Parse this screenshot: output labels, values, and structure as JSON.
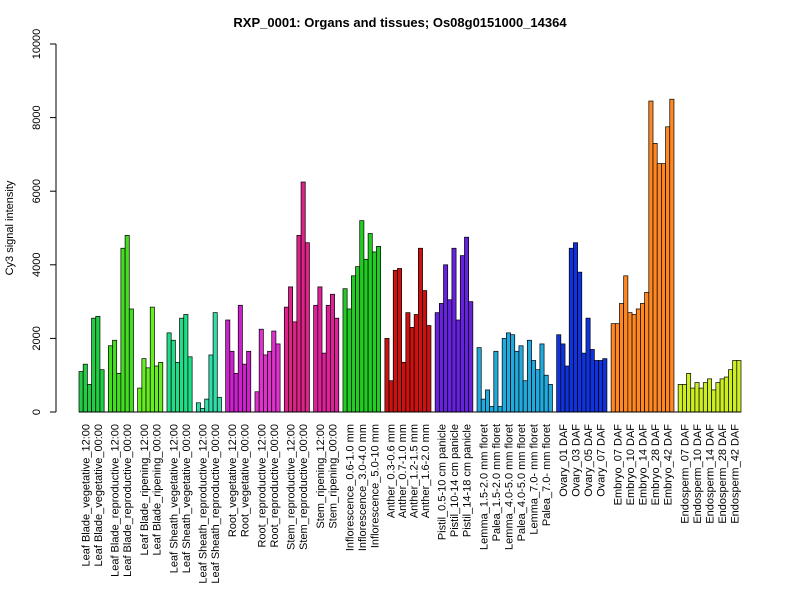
{
  "chart_data": {
    "type": "bar",
    "title": "RXP_0001: Organs and tissues; Os08g0151000_14364",
    "xlabel": "",
    "ylabel": "Cy3 signal intensity",
    "ylim": [
      0,
      10000
    ],
    "yticks": [
      0,
      2000,
      4000,
      6000,
      8000,
      10000
    ],
    "grid": false,
    "legend": "none",
    "groups": [
      {
        "color": "#22cc44",
        "labels": [
          "Leaf Blade_vegetative_12:00",
          "Leaf Blade_vegetative_00:00"
        ],
        "values": [
          1100,
          1300,
          750,
          2550,
          2600,
          1150
        ]
      },
      {
        "color": "#44dd22",
        "labels": [
          "Leaf Blade_reproductive_12:00",
          "Leaf Blade_reproductive_00:00"
        ],
        "values": [
          1800,
          1950,
          1050,
          4450,
          4800,
          2800
        ]
      },
      {
        "color": "#66ee22",
        "labels": [
          "Leaf Blade_ripening_12:00",
          "Leaf Blade_ripening_00:00"
        ],
        "values": [
          650,
          1450,
          1200,
          2850,
          1250,
          1350
        ]
      },
      {
        "color": "#22dd88",
        "labels": [
          "Leaf Sheath_vegetative_12:00",
          "Leaf Sheath_vegetative_00:00"
        ],
        "values": [
          2150,
          1950,
          1350,
          2550,
          2650,
          1500
        ]
      },
      {
        "color": "#33ddaa",
        "labels": [
          "Leaf Sheath_reproductive_12:00",
          "Leaf Sheath_reproductive_00:00"
        ],
        "values": [
          250,
          100,
          350,
          1550,
          2700,
          400
        ]
      },
      {
        "color": "#cc22cc",
        "labels": [
          "Root_vegetative_12:00",
          "Root_vegetative_00:00"
        ],
        "values": [
          2500,
          1650,
          1050,
          2900,
          1300,
          1650
        ]
      },
      {
        "color": "#dd33cc",
        "labels": [
          "Root_reproductive_12:00",
          "Root_reproductive_00:00"
        ],
        "values": [
          550,
          2250,
          1550,
          1650,
          2200,
          1850
        ]
      },
      {
        "color": "#dd2288",
        "labels": [
          "Stem_reproductive_12:00",
          "Stem_reproductive_00:00"
        ],
        "values": [
          2850,
          3400,
          2450,
          4800,
          6250,
          4600
        ]
      },
      {
        "color": "#dd2299",
        "labels": [
          "Stem_ripening_12:00",
          "Stem_ripening_00:00"
        ],
        "values": [
          2900,
          3400,
          1600,
          2900,
          3200,
          2550
        ]
      },
      {
        "color": "#22cc22",
        "labels": [
          "Inflorescence_0.6-1.0 mm",
          "Inflorescence_3.0-4.0 mm",
          "Inflorescence_5.0-10 mm"
        ],
        "values": [
          3350,
          2800,
          3700,
          3950,
          5200,
          4150,
          4850,
          4350,
          4500
        ]
      },
      {
        "color": "#cc1111",
        "labels": [
          "Anther_0.3-0.6 mm",
          "Anther_0.7-1.0 mm",
          "Anther_1.2-1.5 mm",
          "Anther_1.6-2.0 mm"
        ],
        "values": [
          2000,
          850,
          3850,
          3900,
          1350,
          2700,
          2300,
          2650,
          4450,
          3300,
          2350
        ]
      },
      {
        "color": "#6622dd",
        "labels": [
          "Pistil_0.5-10 cm panicle",
          "Pistil_10-14 cm panicle",
          "Pistil_14-18 cm panicle"
        ],
        "values": [
          2700,
          2950,
          4000,
          3050,
          4450,
          2500,
          4250,
          4750,
          3000
        ]
      },
      {
        "color": "#22aadd",
        "labels": [
          "Lemma_1.5-2.0 mm floret",
          "Palea_1.5-2.0 mm floret",
          "Lemma_4.0-5.0 mm floret",
          "Palea_4.0-5.0 mm floret",
          "Lemma_7.0- mm floret",
          "Palea_7.0- mm floret"
        ],
        "values": [
          1750,
          350,
          600,
          150,
          1650,
          150,
          2000,
          2150,
          2100,
          1650,
          1800,
          850,
          1950,
          1400,
          1150,
          1850,
          1000,
          750
        ]
      },
      {
        "color": "#1133dd",
        "labels": [
          "Ovary_01 DAF",
          "Ovary_03 DAF",
          "Ovary_05 DAF",
          "Ovary_07 DAF"
        ],
        "values": [
          2100,
          1850,
          1250,
          4450,
          4600,
          3800,
          1600,
          2550,
          1700,
          1400,
          1400,
          1450
        ]
      },
      {
        "color": "#ff8822",
        "labels": [
          "Embryo_07 DAF",
          "Embryo_10 DAF",
          "Embryo_14 DAF",
          "Embryo_28 DAF",
          "Embryo_42 DAF"
        ],
        "values": [
          2400,
          2400,
          2950,
          3700,
          2700,
          2650,
          2800,
          2950,
          3250,
          8450,
          7300,
          6750,
          6750,
          7750,
          8500
        ]
      },
      {
        "color": "#ccee22",
        "labels": [
          "Endosperm_07 DAF",
          "Endosperm_10 DAF",
          "Endosperm_14 DAF",
          "Endosperm_28 DAF",
          "Endosperm_42 DAF"
        ],
        "values": [
          750,
          750,
          1050,
          650,
          800,
          650,
          800,
          900,
          600,
          800,
          900,
          950,
          1150,
          1400,
          1400
        ]
      }
    ]
  }
}
